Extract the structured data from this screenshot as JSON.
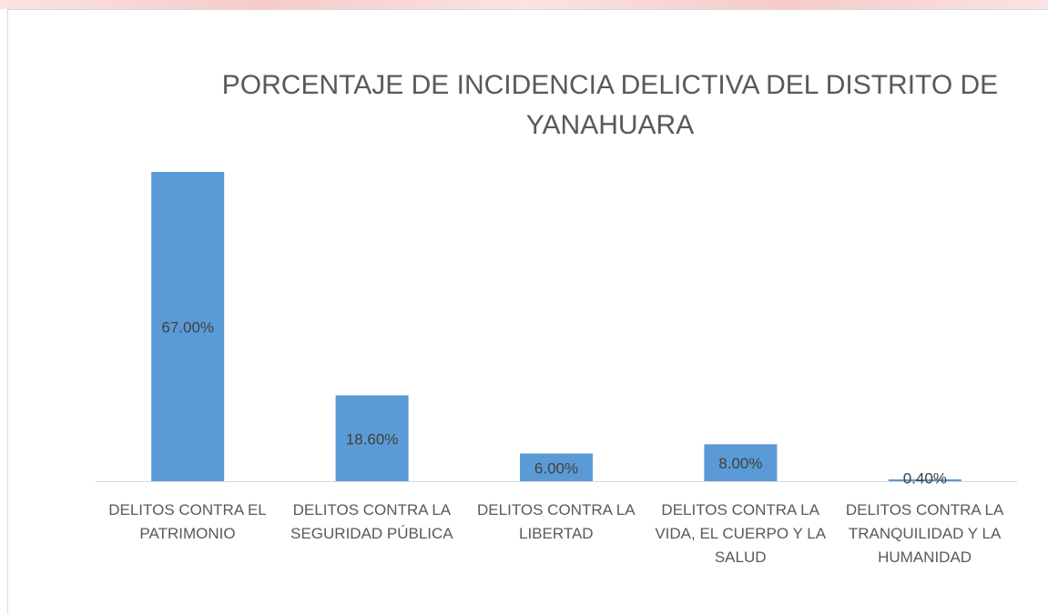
{
  "chart_data": {
    "type": "bar",
    "title": "PORCENTAJE DE INCIDENCIA DELICTIVA DEL DISTRITO DE YANAHUARA",
    "categories": [
      "DELITOS CONTRA EL PATRIMONIO",
      "DELITOS CONTRA LA SEGURIDAD PÚBLICA",
      "DELITOS CONTRA LA LIBERTAD",
      "DELITOS CONTRA LA VIDA, EL CUERPO Y LA SALUD",
      "DELITOS CONTRA LA TRANQUILIDAD Y LA HUMANIDAD"
    ],
    "values": [
      67,
      18.6,
      6,
      8,
      0.4
    ],
    "value_labels": [
      "67.00%",
      "18.60%",
      "6.00%",
      "8.00%",
      "0.40%"
    ],
    "color": "#5b9bd5"
  }
}
